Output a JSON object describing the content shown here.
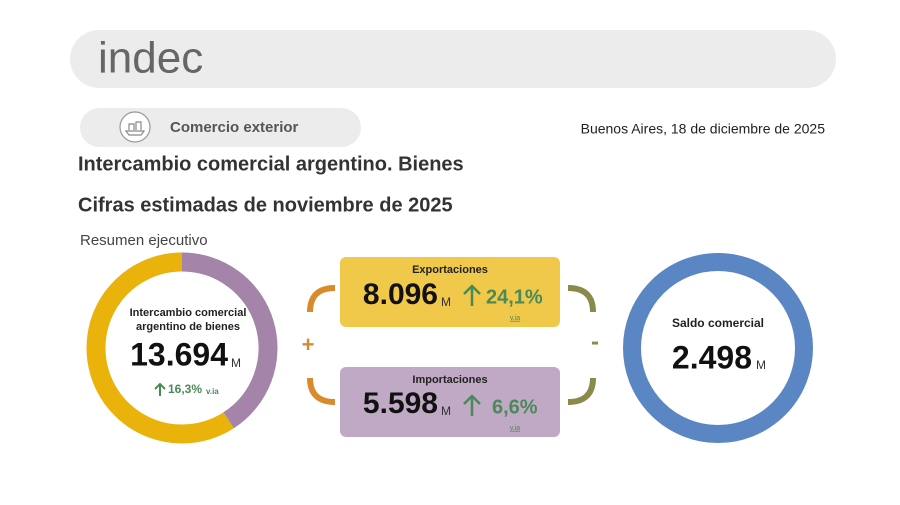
{
  "header": {
    "logo": "indec"
  },
  "section": {
    "label": "Comercio exterior",
    "date": "Buenos Aires, 18 de diciembre de 2025"
  },
  "title": "Intercambio comercial argentino. Bienes",
  "subtitle": "Cifras estimadas de noviembre de 2025",
  "summary_label": "Resumen ejecutivo",
  "intercambio": {
    "label_lines": [
      "Intercambio comercial",
      "argentino de bienes"
    ],
    "value": {
      "value": 13694,
      "label": "13.694"
    },
    "unit": "M",
    "change": "16,3%",
    "change_note": "v.ia"
  },
  "exportaciones": {
    "label": "Exportaciones",
    "value": {
      "value": 8096,
      "label": "8.096"
    },
    "unit": "M",
    "change": "24,1%",
    "change_note": "v.ia",
    "color": "#e9b30c"
  },
  "importaciones": {
    "label": "Importaciones",
    "value": {
      "value": 5598,
      "label": "5.598"
    },
    "unit": "M",
    "change": "6,6%",
    "change_note": "v.ia",
    "color": "#a484a8"
  },
  "saldo": {
    "label": "Saldo comercial",
    "value": {
      "value": 2498,
      "label": "2.498"
    },
    "unit": "M",
    "color": "#5b86c4"
  },
  "operators": {
    "plus": "+",
    "minus": "-"
  }
}
